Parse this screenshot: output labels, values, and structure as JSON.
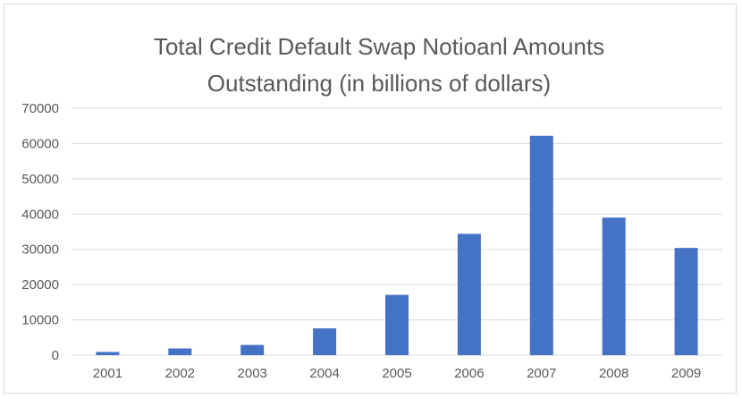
{
  "chart_data": {
    "type": "bar",
    "title": "Total Credit Default Swap Notioanl Amounts Outstanding (in billions of dollars)",
    "title_lines": [
      "Total Credit Default Swap Notioanl Amounts",
      "Outstanding (in billions of dollars)"
    ],
    "categories": [
      "2001",
      "2002",
      "2003",
      "2004",
      "2005",
      "2006",
      "2007",
      "2008",
      "2009"
    ],
    "values": [
      919,
      1900,
      2900,
      7600,
      17100,
      34400,
      62200,
      39000,
      30400
    ],
    "ylim": [
      0,
      70000
    ],
    "yticks": [
      "0",
      "10000",
      "20000",
      "30000",
      "40000",
      "50000",
      "60000",
      "70000"
    ],
    "xlabel": "",
    "ylabel": "",
    "grid": true,
    "legend": "none",
    "bar_color": "#4472c4",
    "grid_color": "#d9d9d9"
  }
}
